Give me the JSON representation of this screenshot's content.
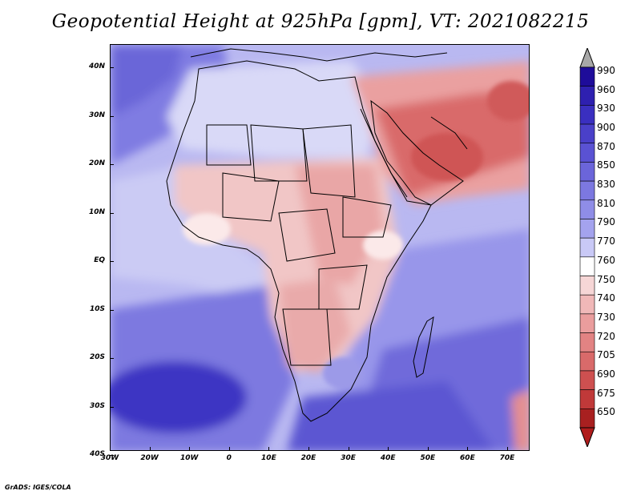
{
  "title": "Geopotential Height at 925hPa [gpm], VT: 2021082215",
  "footer": "GrADS: IGES/COLA",
  "axes": {
    "lat_labels": [
      "40N",
      "30N",
      "20N",
      "10N",
      "EQ",
      "10S",
      "20S",
      "30S",
      "40S"
    ],
    "lon_labels": [
      "30W",
      "20W",
      "10W",
      "0",
      "10E",
      "20E",
      "30E",
      "40E",
      "50E",
      "60E",
      "70E"
    ]
  },
  "legend": {
    "levels": [
      "990",
      "960",
      "930",
      "900",
      "870",
      "850",
      "830",
      "810",
      "790",
      "770",
      "760",
      "750",
      "740",
      "730",
      "720",
      "705",
      "690",
      "675",
      "650"
    ],
    "colors": [
      "#1e0c9a",
      "#2e20b0",
      "#3a2fc0",
      "#4a40c9",
      "#5a52d3",
      "#6b65da",
      "#7c78e0",
      "#8f8de7",
      "#a4a3ee",
      "#c9c9f6",
      "#ffffff",
      "#f6d6d6",
      "#f0b8b8",
      "#ea9d9d",
      "#e28383",
      "#d96a6a",
      "#ce5050",
      "#c03939",
      "#a82020"
    ],
    "top_arrow_color": "#a8a8a8",
    "bottom_arrow_color": "#b01c1c"
  },
  "colors": {
    "deep_blue": "#3b33c2",
    "mid_blue": "#6a66d8",
    "light_blue": "#a3a1ec",
    "pale_blue": "#d6d6f7",
    "pale_red": "#f6d2d2",
    "mid_red": "#e99a9a",
    "deep_red": "#d65858"
  }
}
